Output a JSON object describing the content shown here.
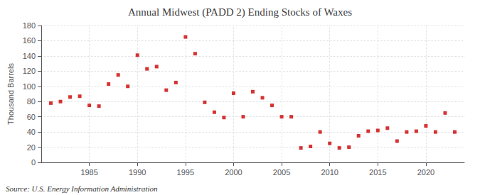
{
  "chart_data": {
    "type": "scatter",
    "title": "Annual Midwest (PADD 2) Ending Stocks of Waxes",
    "ylabel": "Thousand Barrels",
    "annotation": "Source: U.S. Energy Information Administration",
    "x": [
      1981,
      1982,
      1983,
      1984,
      1985,
      1986,
      1987,
      1988,
      1989,
      1990,
      1991,
      1992,
      1993,
      1994,
      1995,
      1996,
      1997,
      1998,
      1999,
      2000,
      2001,
      2002,
      2003,
      2004,
      2005,
      2006,
      2007,
      2008,
      2009,
      2010,
      2011,
      2012,
      2013,
      2014,
      2015,
      2016,
      2017,
      2018,
      2019,
      2020,
      2021,
      2022,
      2023
    ],
    "values": [
      78,
      80,
      86,
      87,
      75,
      74,
      103,
      115,
      100,
      141,
      123,
      126,
      95,
      105,
      165,
      143,
      79,
      66,
      59,
      91,
      60,
      93,
      85,
      75,
      60,
      60,
      19,
      21,
      40,
      25,
      19,
      20,
      35,
      41,
      42,
      45,
      28,
      40,
      41,
      48,
      40,
      65,
      40
    ],
    "color": "#cc0000",
    "marker": "square",
    "xlim": [
      1980,
      2024
    ],
    "xticks": [
      1985,
      1990,
      1995,
      2000,
      2005,
      2010,
      2015,
      2020
    ],
    "ylim": [
      0,
      180
    ],
    "yticks": [
      0,
      20,
      40,
      60,
      80,
      100,
      120,
      140,
      160,
      180
    ],
    "grid": true
  }
}
